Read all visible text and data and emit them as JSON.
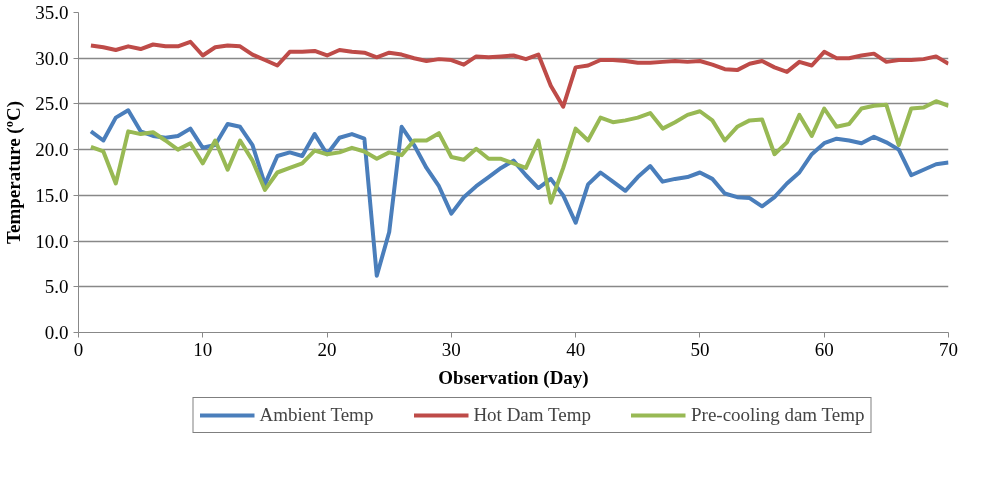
{
  "chart_data": {
    "type": "line",
    "xlabel": "Observation (Day)",
    "ylabel": "Temperature (ºC)",
    "x": [
      1,
      2,
      3,
      4,
      5,
      6,
      7,
      8,
      9,
      10,
      11,
      12,
      13,
      14,
      15,
      16,
      17,
      18,
      19,
      20,
      21,
      22,
      23,
      24,
      25,
      26,
      27,
      28,
      29,
      30,
      31,
      32,
      33,
      34,
      35,
      36,
      37,
      38,
      39,
      40,
      41,
      42,
      43,
      44,
      45,
      46,
      47,
      48,
      49,
      50,
      51,
      52,
      53,
      54,
      55,
      56,
      57,
      58,
      59,
      60,
      61,
      62,
      63,
      64,
      65,
      66,
      67,
      68,
      69,
      70
    ],
    "series": [
      {
        "name": "Ambient Temp",
        "color": "#4a7ebb",
        "values": [
          22.0,
          21.0,
          23.5,
          24.3,
          22.0,
          21.5,
          21.3,
          21.5,
          22.3,
          20.2,
          20.5,
          22.8,
          22.5,
          20.5,
          16.2,
          19.3,
          19.7,
          19.3,
          21.7,
          19.5,
          21.3,
          21.7,
          21.2,
          6.2,
          11.0,
          22.5,
          20.5,
          18.0,
          16.0,
          13.0,
          14.8,
          16.0,
          17.0,
          18.0,
          18.8,
          17.2,
          15.8,
          16.8,
          15.0,
          12.0,
          16.2,
          17.5,
          16.5,
          15.5,
          17.0,
          18.2,
          16.5,
          16.8,
          17.0,
          17.5,
          16.8,
          15.2,
          14.8,
          14.7,
          13.8,
          14.8,
          16.3,
          17.5,
          19.5,
          20.7,
          21.2,
          21.0,
          20.7,
          21.4,
          20.8,
          20.0,
          17.2,
          17.8,
          18.4,
          18.6
        ]
      },
      {
        "name": "Hot Dam Temp",
        "color": "#be4b48",
        "values": [
          31.4,
          31.2,
          30.9,
          31.3,
          31.0,
          31.5,
          31.3,
          31.3,
          31.8,
          30.3,
          31.2,
          31.4,
          31.3,
          30.4,
          29.8,
          29.2,
          30.7,
          30.7,
          30.8,
          30.3,
          30.9,
          30.7,
          30.6,
          30.1,
          30.6,
          30.4,
          30.0,
          29.7,
          29.9,
          29.8,
          29.3,
          30.2,
          30.1,
          30.2,
          30.3,
          29.9,
          30.4,
          27.0,
          24.7,
          29.0,
          29.2,
          29.8,
          29.8,
          29.7,
          29.5,
          29.5,
          29.6,
          29.7,
          29.6,
          29.7,
          29.3,
          28.8,
          28.7,
          29.4,
          29.7,
          29.0,
          28.5,
          29.6,
          29.2,
          30.7,
          30.0,
          30.0,
          30.3,
          30.5,
          29.6,
          29.8,
          29.8,
          29.9,
          30.2,
          29.4
        ]
      },
      {
        "name": "Pre-cooling dam Temp",
        "color": "#98b954",
        "values": [
          20.3,
          19.8,
          16.3,
          22.0,
          21.7,
          21.9,
          21.0,
          20.0,
          20.7,
          18.5,
          21.0,
          17.8,
          21.0,
          18.8,
          15.6,
          17.5,
          18.0,
          18.5,
          19.9,
          19.5,
          19.7,
          20.2,
          19.8,
          19.0,
          19.7,
          19.4,
          21.0,
          21.0,
          21.8,
          19.2,
          18.9,
          20.1,
          19.0,
          19.0,
          18.5,
          18.0,
          21.0,
          14.2,
          18.0,
          22.3,
          21.0,
          23.5,
          23.0,
          23.2,
          23.5,
          24.0,
          22.3,
          23.0,
          23.8,
          24.2,
          23.2,
          21.0,
          22.5,
          23.2,
          23.3,
          19.5,
          20.8,
          23.8,
          21.5,
          24.5,
          22.5,
          22.8,
          24.5,
          24.8,
          24.9,
          20.5,
          24.5,
          24.6,
          25.3,
          24.8
        ]
      }
    ],
    "xlim": [
      0,
      70
    ],
    "xticks": [
      0,
      10,
      20,
      30,
      40,
      50,
      60,
      70
    ],
    "ylim": [
      0,
      35
    ],
    "yticks": [
      {
        "value": 0,
        "label": "0.0"
      },
      {
        "value": 5,
        "label": "5.0"
      },
      {
        "value": 10,
        "label": "10.0"
      },
      {
        "value": 15,
        "label": "15.0"
      },
      {
        "value": 20,
        "label": "20.0"
      },
      {
        "value": 25,
        "label": "25.0"
      },
      {
        "value": 30,
        "label": "30.0"
      },
      {
        "value": 35,
        "label": "35.0"
      }
    ],
    "grid": "y",
    "legend": "bottom",
    "marker": "none",
    "line_style": "solid"
  }
}
